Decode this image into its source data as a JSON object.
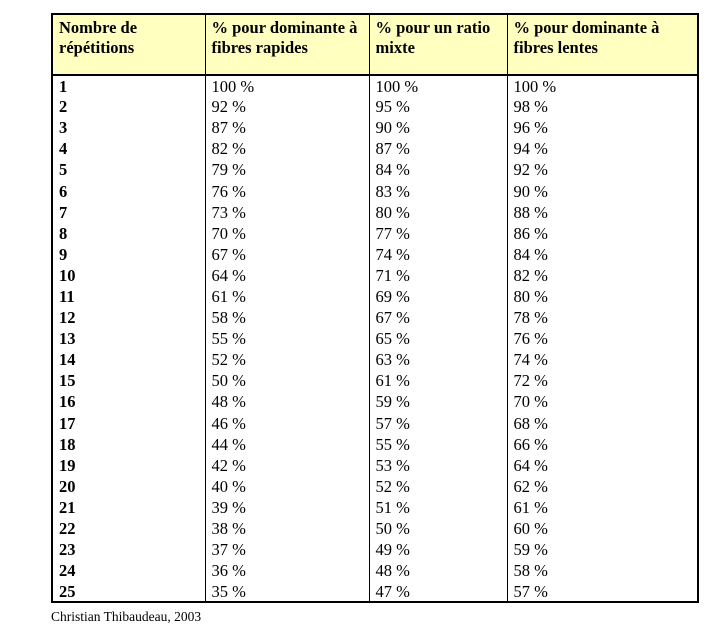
{
  "table": {
    "headers": [
      "Nombre de répétitions",
      "% pour dominante à fibres rapides",
      "% pour un ratio mixte",
      "% pour dominante à fibres lentes"
    ],
    "rows": [
      [
        "1",
        "100 %",
        "100 %",
        "100 %"
      ],
      [
        "2",
        "92 %",
        "95 %",
        "98 %"
      ],
      [
        "3",
        "87 %",
        "90 %",
        "96 %"
      ],
      [
        "4",
        "82 %",
        "87 %",
        "94 %"
      ],
      [
        "5",
        "79 %",
        "84 %",
        "92 %"
      ],
      [
        "6",
        "76 %",
        "83 %",
        "90 %"
      ],
      [
        "7",
        "73 %",
        "80 %",
        "88 %"
      ],
      [
        "8",
        "70 %",
        "77 %",
        "86 %"
      ],
      [
        "9",
        "67 %",
        "74 %",
        "84 %"
      ],
      [
        "10",
        "64 %",
        "71 %",
        "82 %"
      ],
      [
        "11",
        "61 %",
        "69 %",
        "80 %"
      ],
      [
        "12",
        "58 %",
        "67 %",
        "78 %"
      ],
      [
        "13",
        "55 %",
        "65 %",
        "76 %"
      ],
      [
        "14",
        "52 %",
        "63 %",
        "74 %"
      ],
      [
        "15",
        "50 %",
        "61 %",
        "72 %"
      ],
      [
        "16",
        "48 %",
        "59 %",
        "70 %"
      ],
      [
        "17",
        "46 %",
        "57 %",
        "68 %"
      ],
      [
        "18",
        "44 %",
        "55 %",
        "66 %"
      ],
      [
        "19",
        "42 %",
        "53 %",
        "64 %"
      ],
      [
        "20",
        "40 %",
        "52 %",
        "62 %"
      ],
      [
        "21",
        "39 %",
        "51 %",
        "61 %"
      ],
      [
        "22",
        "38 %",
        "50 %",
        "60 %"
      ],
      [
        "23",
        "37 %",
        "49 %",
        "59 %"
      ],
      [
        "24",
        "36 %",
        "48 %",
        "58 %"
      ],
      [
        "25",
        "35 %",
        "47 %",
        "57 %"
      ]
    ]
  },
  "credit": "Christian Thibaudeau, 2003",
  "colors": {
    "header_background": "#ffffc0",
    "border": "#000000",
    "text": "#000000"
  }
}
